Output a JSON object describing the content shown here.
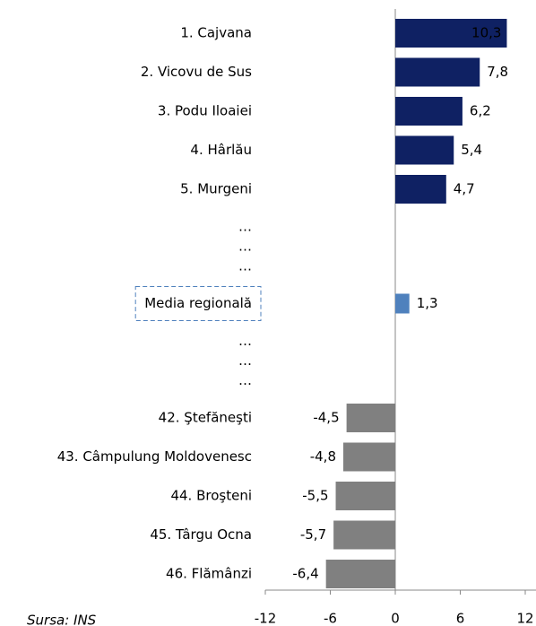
{
  "chart_data": {
    "type": "bar",
    "orientation": "horizontal",
    "categories": [
      "1. Cajvana",
      "2. Vicovu de Sus",
      "3. Podu Iloaiei",
      "4. Hârlău",
      "5. Murgeni",
      "…",
      "…",
      "…",
      "Media regională",
      "…",
      "…",
      "…",
      "42. Ştefăneşti",
      "43. Câmpulung Moldovenesc",
      "44. Broşteni",
      "45. Târgu Ocna",
      "46. Flămânzi"
    ],
    "values": [
      10.3,
      7.8,
      6.2,
      5.4,
      4.7,
      null,
      null,
      null,
      1.3,
      null,
      null,
      null,
      -4.5,
      -4.8,
      -5.5,
      -5.7,
      -6.4
    ],
    "value_labels": [
      "10,3",
      "7,8",
      "6,2",
      "5,4",
      "4,7",
      null,
      null,
      null,
      "1,3",
      null,
      null,
      null,
      "-4,5",
      "-4,8",
      "-5,5",
      "-5,7",
      "-6,4"
    ],
    "colors": [
      "#0f2163",
      "#0f2163",
      "#0f2163",
      "#0f2163",
      "#0f2163",
      null,
      null,
      null,
      "#4f81bd",
      null,
      null,
      null,
      "#808080",
      "#808080",
      "#808080",
      "#808080",
      "#808080"
    ],
    "xlim": [
      -12,
      12
    ],
    "xticks": [
      -12,
      -6,
      0,
      6,
      12
    ],
    "source": "Sursa: INS"
  }
}
